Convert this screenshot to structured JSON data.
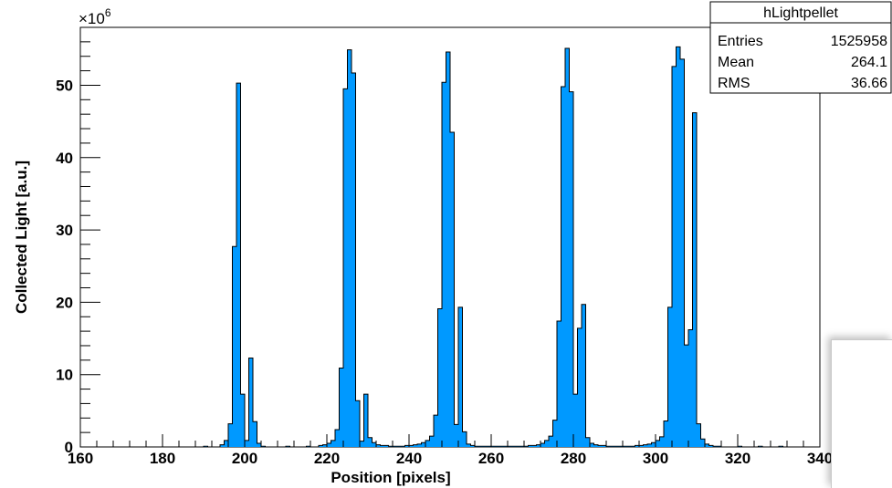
{
  "chart_data": {
    "type": "bar",
    "title": "",
    "xlabel": "Position [pixels]",
    "ylabel": "Collected Light [a.u.]",
    "y_multiplier_label": "×10",
    "y_multiplier_exponent": "6",
    "xlim": [
      160,
      340
    ],
    "ylim": [
      0,
      58
    ],
    "x_ticks": [
      160,
      180,
      200,
      220,
      240,
      260,
      280,
      300,
      320,
      340
    ],
    "y_ticks": [
      0,
      10,
      20,
      30,
      40,
      50
    ],
    "x_tick_labels": [
      "160",
      "180",
      "200",
      "220",
      "240",
      "260",
      "280",
      "300",
      "320",
      "340"
    ],
    "y_tick_labels": [
      "0",
      "10",
      "20",
      "30",
      "40",
      "50"
    ],
    "bin_width": 1,
    "fill_color": "#0099ff",
    "line_color": "#000000",
    "bins": [
      {
        "x": 190,
        "y": 0.1
      },
      {
        "x": 194,
        "y": 0.3
      },
      {
        "x": 195,
        "y": 0.9
      },
      {
        "x": 196,
        "y": 3.2
      },
      {
        "x": 197,
        "y": 27.7
      },
      {
        "x": 198,
        "y": 50.3
      },
      {
        "x": 199,
        "y": 7.3
      },
      {
        "x": 200,
        "y": 0.9
      },
      {
        "x": 201,
        "y": 12.3
      },
      {
        "x": 202,
        "y": 3.5
      },
      {
        "x": 203,
        "y": 0.5
      },
      {
        "x": 204,
        "y": 0.1
      },
      {
        "x": 210,
        "y": 0.1
      },
      {
        "x": 215,
        "y": 0.1
      },
      {
        "x": 218,
        "y": 0.2
      },
      {
        "x": 219,
        "y": 0.3
      },
      {
        "x": 220,
        "y": 0.5
      },
      {
        "x": 221,
        "y": 0.9
      },
      {
        "x": 222,
        "y": 2.4
      },
      {
        "x": 223,
        "y": 10.9
      },
      {
        "x": 224,
        "y": 49.5
      },
      {
        "x": 225,
        "y": 54.9
      },
      {
        "x": 226,
        "y": 51.7
      },
      {
        "x": 227,
        "y": 6.4
      },
      {
        "x": 228,
        "y": 0.8
      },
      {
        "x": 229,
        "y": 7.3
      },
      {
        "x": 230,
        "y": 1.3
      },
      {
        "x": 231,
        "y": 0.6
      },
      {
        "x": 232,
        "y": 0.3
      },
      {
        "x": 233,
        "y": 0.2
      },
      {
        "x": 234,
        "y": 0.2
      },
      {
        "x": 235,
        "y": 0.1
      },
      {
        "x": 236,
        "y": 0.1
      },
      {
        "x": 237,
        "y": 0.1
      },
      {
        "x": 238,
        "y": 0.1
      },
      {
        "x": 239,
        "y": 0.2
      },
      {
        "x": 240,
        "y": 0.2
      },
      {
        "x": 241,
        "y": 0.3
      },
      {
        "x": 242,
        "y": 0.4
      },
      {
        "x": 243,
        "y": 0.6
      },
      {
        "x": 244,
        "y": 0.9
      },
      {
        "x": 245,
        "y": 1.5
      },
      {
        "x": 246,
        "y": 4.4
      },
      {
        "x": 247,
        "y": 19.1
      },
      {
        "x": 248,
        "y": 50.4
      },
      {
        "x": 249,
        "y": 54.6
      },
      {
        "x": 250,
        "y": 43.5
      },
      {
        "x": 251,
        "y": 3.1
      },
      {
        "x": 252,
        "y": 19.3
      },
      {
        "x": 253,
        "y": 2.1
      },
      {
        "x": 254,
        "y": 0.4
      },
      {
        "x": 255,
        "y": 0.2
      },
      {
        "x": 256,
        "y": 0.1
      },
      {
        "x": 257,
        "y": 0.1
      },
      {
        "x": 258,
        "y": 0.1
      },
      {
        "x": 259,
        "y": 0.1
      },
      {
        "x": 260,
        "y": 0.1
      },
      {
        "x": 261,
        "y": 0.1
      },
      {
        "x": 262,
        "y": 0.1
      },
      {
        "x": 263,
        "y": 0.1
      },
      {
        "x": 264,
        "y": 0.1
      },
      {
        "x": 265,
        "y": 0.1
      },
      {
        "x": 266,
        "y": 0.1
      },
      {
        "x": 267,
        "y": 0.1
      },
      {
        "x": 268,
        "y": 0.1
      },
      {
        "x": 269,
        "y": 0.2
      },
      {
        "x": 270,
        "y": 0.2
      },
      {
        "x": 271,
        "y": 0.3
      },
      {
        "x": 272,
        "y": 0.5
      },
      {
        "x": 273,
        "y": 0.9
      },
      {
        "x": 274,
        "y": 1.5
      },
      {
        "x": 275,
        "y": 3.7
      },
      {
        "x": 276,
        "y": 17.4
      },
      {
        "x": 277,
        "y": 49.8
      },
      {
        "x": 278,
        "y": 55.1
      },
      {
        "x": 279,
        "y": 49.1
      },
      {
        "x": 280,
        "y": 7.3
      },
      {
        "x": 281,
        "y": 16.4
      },
      {
        "x": 282,
        "y": 19.7
      },
      {
        "x": 283,
        "y": 1.3
      },
      {
        "x": 284,
        "y": 0.5
      },
      {
        "x": 285,
        "y": 0.3
      },
      {
        "x": 286,
        "y": 0.2
      },
      {
        "x": 287,
        "y": 0.2
      },
      {
        "x": 288,
        "y": 0.1
      },
      {
        "x": 289,
        "y": 0.1
      },
      {
        "x": 290,
        "y": 0.1
      },
      {
        "x": 291,
        "y": 0.1
      },
      {
        "x": 292,
        "y": 0.1
      },
      {
        "x": 293,
        "y": 0.1
      },
      {
        "x": 294,
        "y": 0.1
      },
      {
        "x": 295,
        "y": 0.2
      },
      {
        "x": 296,
        "y": 0.2
      },
      {
        "x": 297,
        "y": 0.3
      },
      {
        "x": 298,
        "y": 0.4
      },
      {
        "x": 299,
        "y": 0.6
      },
      {
        "x": 300,
        "y": 0.9
      },
      {
        "x": 301,
        "y": 1.4
      },
      {
        "x": 302,
        "y": 3.6
      },
      {
        "x": 303,
        "y": 19.3
      },
      {
        "x": 304,
        "y": 52.6
      },
      {
        "x": 305,
        "y": 55.3
      },
      {
        "x": 306,
        "y": 53.6
      },
      {
        "x": 307,
        "y": 14.1
      },
      {
        "x": 308,
        "y": 16.2
      },
      {
        "x": 309,
        "y": 46.2
      },
      {
        "x": 310,
        "y": 3.2
      },
      {
        "x": 311,
        "y": 1.1
      },
      {
        "x": 312,
        "y": 0.4
      },
      {
        "x": 313,
        "y": 0.2
      },
      {
        "x": 314,
        "y": 0.1
      },
      {
        "x": 315,
        "y": 0.1
      },
      {
        "x": 320,
        "y": 0.1
      },
      {
        "x": 325,
        "y": 0.1
      },
      {
        "x": 330,
        "y": 0.1
      }
    ],
    "legend_position": "top-right"
  },
  "stats_box": {
    "title": "hLightpellet",
    "rows": [
      {
        "label": "Entries",
        "value": "1525958"
      },
      {
        "label": "Mean",
        "value": "264.1"
      },
      {
        "label": "RMS",
        "value": "36.66"
      }
    ]
  }
}
